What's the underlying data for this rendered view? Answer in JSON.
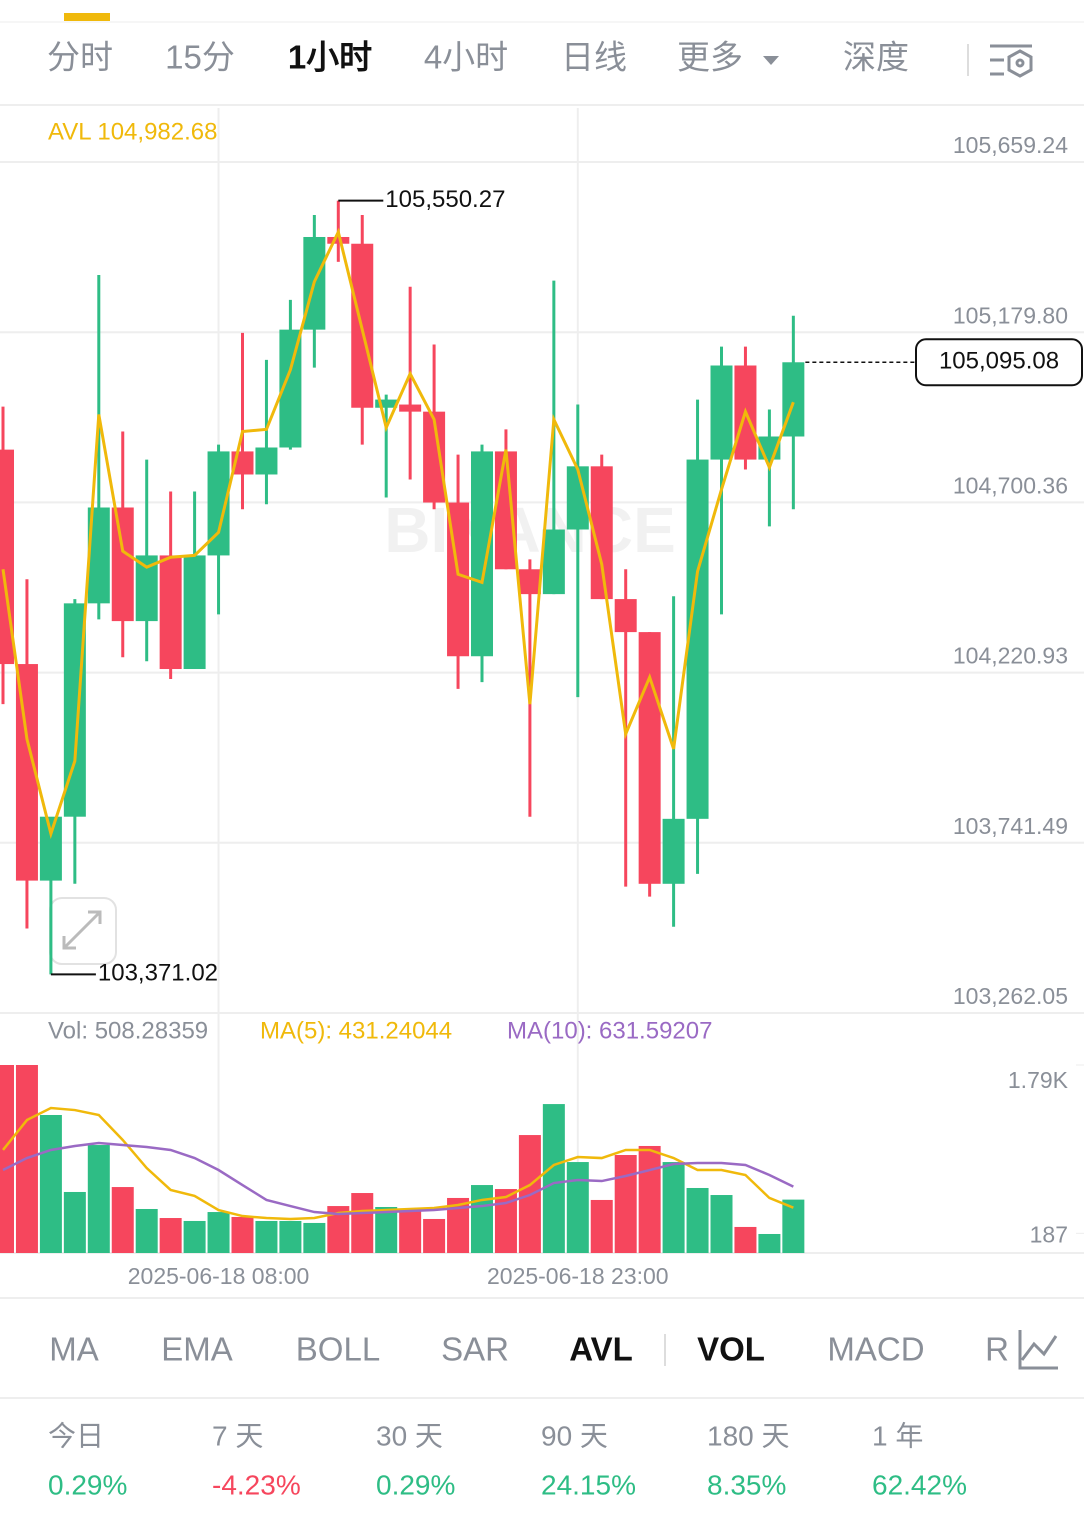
{
  "tabs": [
    "分时",
    "15分",
    "1小时",
    "4小时",
    "日线",
    "更多",
    "深度"
  ],
  "chart_data": [
    {
      "type": "candlestick",
      "watermark": "BINANCE",
      "up_color": "#2ebd85",
      "down_color": "#f6465d",
      "grid": true,
      "ylim": [
        103262.05,
        105659.24
      ],
      "yticks": [
        {
          "value": 105659.24,
          "label": "105,659.24"
        },
        {
          "value": 105179.8,
          "label": "105,179.80"
        },
        {
          "value": 104700.36,
          "label": "104,700.36"
        },
        {
          "value": 104220.93,
          "label": "104,220.93"
        },
        {
          "value": 103741.49,
          "label": "103,741.49"
        },
        {
          "value": 103262.05,
          "label": "103,262.05"
        }
      ],
      "open": [
        104849,
        104245,
        103635,
        103815,
        104416,
        104686,
        104366,
        104551,
        104231,
        104551,
        104844,
        104779,
        104855,
        105187,
        105448,
        105429,
        104967,
        104976,
        104956,
        104700,
        104267,
        104844,
        104512,
        104442,
        104624,
        104802,
        104428,
        104335,
        103626,
        103809,
        104821,
        105086,
        104821,
        104886
      ],
      "high": [
        104970,
        104484,
        103795,
        104428,
        105341,
        104900,
        104821,
        104731,
        104731,
        104863,
        105178,
        105102,
        105271,
        105510,
        105550.27,
        105510,
        105004,
        105308,
        105145,
        104835,
        104863,
        104906,
        104540,
        105325,
        104976,
        104835,
        104512,
        104335,
        104436,
        104990,
        105139,
        105139,
        104962,
        105226
      ],
      "low": [
        104132,
        103500,
        103371.02,
        103626,
        104371,
        104264,
        104253,
        104203,
        104231,
        104385,
        104681,
        104695,
        104849,
        105080,
        105378,
        104863,
        104714,
        104765,
        104681,
        104175,
        104194,
        104512,
        103815,
        104442,
        104152,
        104428,
        103618,
        103590,
        103505,
        103654,
        104385,
        104793,
        104633,
        104681
      ],
      "close": [
        104245,
        103635,
        103815,
        104416,
        104686,
        104366,
        104551,
        104231,
        104551,
        104844,
        104779,
        104855,
        105187,
        105448,
        105429,
        104967,
        104990,
        104956,
        104700,
        104267,
        104844,
        104512,
        104442,
        104624,
        104802,
        104428,
        104335,
        103626,
        103809,
        104821,
        105086,
        104821,
        104886,
        105095.08
      ],
      "overlay": {
        "name": "AVL 104,982.68",
        "color": "#f0b90b",
        "values": [
          104512,
          104034,
          103767,
          103972,
          104948,
          104563,
          104518,
          104546,
          104551,
          104616,
          104900,
          104906,
          105074,
          105322,
          105462,
          105187,
          104911,
          105063,
          104934,
          104498,
          104475,
          104849,
          104132,
          104934,
          104793,
          104526,
          104048,
          104208,
          104006,
          104506,
          104737,
          104956,
          104799,
          104982.68
        ]
      },
      "high_label": {
        "value": 105550.27,
        "label": "105,550.27"
      },
      "low_label": {
        "value": 103371.02,
        "label": "103,371.02"
      },
      "last_price": {
        "value": 105095.08,
        "label": "105,095.08"
      }
    },
    {
      "type": "bar",
      "label": "Vol: 508.28359",
      "categories": [
        null,
        null,
        null,
        null,
        null,
        null,
        null,
        null,
        null,
        "2025-06-18 08:00",
        null,
        null,
        null,
        null,
        null,
        null,
        null,
        null,
        null,
        null,
        null,
        null,
        null,
        null,
        "2025-06-18 23:00",
        null,
        null,
        null,
        null,
        null,
        null,
        null,
        null,
        null
      ],
      "values": [
        1790,
        1790,
        1314,
        581,
        1028,
        628,
        419,
        333,
        305,
        390,
        343,
        305,
        305,
        286,
        447,
        571,
        438,
        400,
        324,
        524,
        647,
        609,
        1123,
        1418,
        866,
        505,
        933,
        1019,
        866,
        619,
        552,
        248,
        181,
        508.28359
      ],
      "ylim": [
        0,
        1790
      ],
      "yticks": [
        {
          "value": 1790,
          "label": "1.79K"
        },
        187
      ],
      "series": [
        {
          "name": "MA(5): 431.24044",
          "color": "#f0b90b",
          "values": [
            981,
            1266,
            1380,
            1361,
            1314,
            1076,
            809,
            600,
            543,
            409,
            352,
            333,
            324,
            333,
            381,
            400,
            409,
            419,
            428,
            457,
            505,
            533,
            647,
            838,
            914,
            904,
            981,
            981,
            904,
            790,
            790,
            743,
            524,
            431.24044
          ]
        },
        {
          "name": "MA(10): 631.59207",
          "color": "#9a6ac4",
          "values": [
            790,
            904,
            981,
            1019,
            1047,
            1028,
            1009,
            981,
            904,
            790,
            647,
            505,
            447,
            390,
            371,
            381,
            390,
            400,
            409,
            428,
            447,
            476,
            552,
            666,
            695,
            685,
            733,
            790,
            847,
            857,
            857,
            838,
            743,
            631.59207
          ]
        }
      ]
    }
  ],
  "indicator_tabs": [
    "MA",
    "EMA",
    "BOLL",
    "SAR",
    "AVL",
    "VOL",
    "MACD",
    "R"
  ],
  "performance": [
    {
      "period": "今日",
      "change": "0.29%"
    },
    {
      "period": "7 天",
      "change": "-4.23%"
    },
    {
      "period": "30 天",
      "change": "0.29%"
    },
    {
      "period": "90 天",
      "change": "24.15%"
    },
    {
      "period": "180 天",
      "change": "8.35%"
    },
    {
      "period": "1 年",
      "change": "62.42%"
    }
  ]
}
